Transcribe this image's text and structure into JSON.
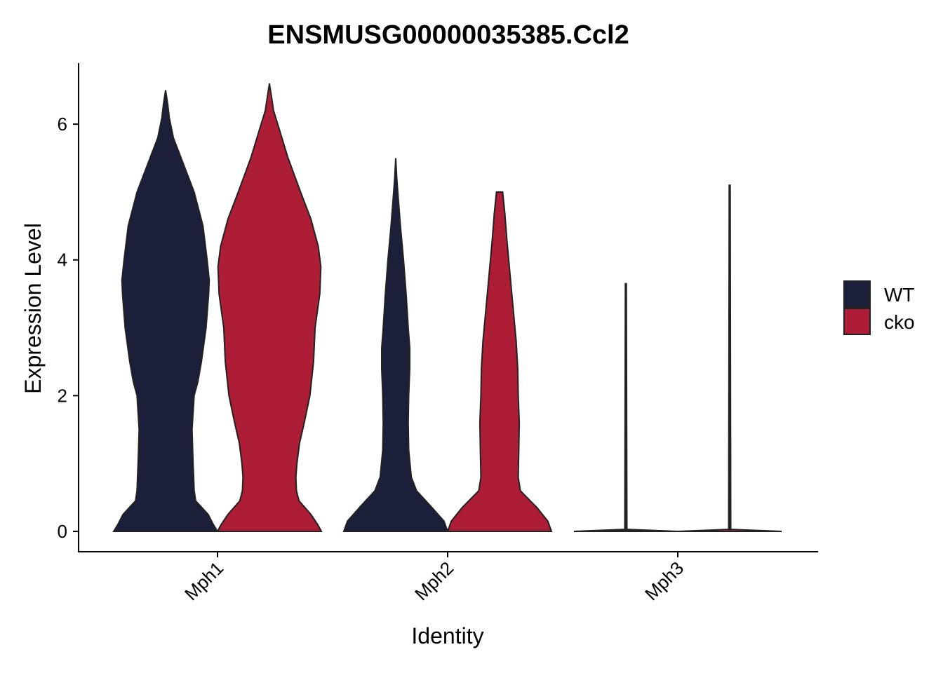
{
  "chart_data": {
    "type": "violin",
    "title": "ENSMUSG00000035385.Ccl2",
    "xlabel": "Identity",
    "ylabel": "Expression Level",
    "categories": [
      "Mph1",
      "Mph2",
      "Mph3"
    ],
    "yticks": [
      0,
      2,
      4,
      6
    ],
    "ylim": [
      -0.3,
      6.9
    ],
    "grid": false,
    "legend_position": "right",
    "series": [
      {
        "name": "WT",
        "color": "#1b1f3a",
        "violins": [
          {
            "category": "Mph1",
            "max": 6.5,
            "profile": [
              [
                0,
                1.0
              ],
              [
                0.1,
                0.92
              ],
              [
                0.25,
                0.82
              ],
              [
                0.45,
                0.58
              ],
              [
                0.6,
                0.55
              ],
              [
                0.8,
                0.54
              ],
              [
                1.0,
                0.53
              ],
              [
                1.5,
                0.51
              ],
              [
                2.0,
                0.55
              ],
              [
                2.2,
                0.62
              ],
              [
                2.5,
                0.69
              ],
              [
                3.0,
                0.78
              ],
              [
                3.5,
                0.83
              ],
              [
                3.7,
                0.84
              ],
              [
                4.0,
                0.8
              ],
              [
                4.5,
                0.72
              ],
              [
                5.0,
                0.55
              ],
              [
                5.5,
                0.3
              ],
              [
                5.8,
                0.15
              ],
              [
                6.1,
                0.07
              ],
              [
                6.3,
                0.04
              ],
              [
                6.5,
                0.0
              ]
            ]
          },
          {
            "category": "Mph2",
            "max": 5.5,
            "profile": [
              [
                0,
                1.0
              ],
              [
                0.15,
                0.93
              ],
              [
                0.35,
                0.7
              ],
              [
                0.6,
                0.4
              ],
              [
                0.8,
                0.3
              ],
              [
                1.2,
                0.25
              ],
              [
                1.6,
                0.24
              ],
              [
                2.0,
                0.25
              ],
              [
                2.4,
                0.27
              ],
              [
                2.7,
                0.27
              ],
              [
                3.0,
                0.24
              ],
              [
                3.5,
                0.2
              ],
              [
                4.0,
                0.15
              ],
              [
                4.5,
                0.09
              ],
              [
                4.9,
                0.05
              ],
              [
                5.2,
                0.02
              ],
              [
                5.5,
                0.0
              ]
            ]
          },
          {
            "category": "Mph3",
            "max": 3.65,
            "profile": [
              [
                0,
                1.0
              ],
              [
                0.03,
                0.02
              ],
              [
                3.65,
                0.01
              ]
            ]
          }
        ]
      },
      {
        "name": "cko",
        "color": "#ad1d35",
        "violins": [
          {
            "category": "Mph1",
            "max": 6.6,
            "profile": [
              [
                0,
                1.0
              ],
              [
                0.1,
                0.93
              ],
              [
                0.25,
                0.8
              ],
              [
                0.45,
                0.57
              ],
              [
                0.6,
                0.52
              ],
              [
                0.8,
                0.51
              ],
              [
                1.0,
                0.53
              ],
              [
                1.3,
                0.58
              ],
              [
                1.6,
                0.67
              ],
              [
                2.0,
                0.78
              ],
              [
                2.5,
                0.85
              ],
              [
                3.0,
                0.88
              ],
              [
                3.5,
                0.97
              ],
              [
                3.9,
                0.99
              ],
              [
                4.2,
                0.94
              ],
              [
                4.6,
                0.8
              ],
              [
                5.0,
                0.6
              ],
              [
                5.5,
                0.36
              ],
              [
                5.9,
                0.2
              ],
              [
                6.2,
                0.08
              ],
              [
                6.4,
                0.04
              ],
              [
                6.6,
                0.0
              ]
            ]
          },
          {
            "category": "Mph2",
            "max": 5.0,
            "profile": [
              [
                0,
                1.0
              ],
              [
                0.15,
                0.93
              ],
              [
                0.35,
                0.72
              ],
              [
                0.6,
                0.4
              ],
              [
                0.8,
                0.36
              ],
              [
                1.2,
                0.37
              ],
              [
                1.6,
                0.38
              ],
              [
                2.0,
                0.36
              ],
              [
                2.4,
                0.35
              ],
              [
                2.8,
                0.32
              ],
              [
                3.3,
                0.26
              ],
              [
                3.8,
                0.2
              ],
              [
                4.3,
                0.14
              ],
              [
                4.7,
                0.1
              ],
              [
                5.0,
                0.06
              ]
            ]
          },
          {
            "category": "Mph3",
            "max": 5.1,
            "profile": [
              [
                0,
                1.0
              ],
              [
                0.03,
                0.02
              ],
              [
                5.1,
                0.01
              ]
            ]
          }
        ]
      }
    ]
  }
}
